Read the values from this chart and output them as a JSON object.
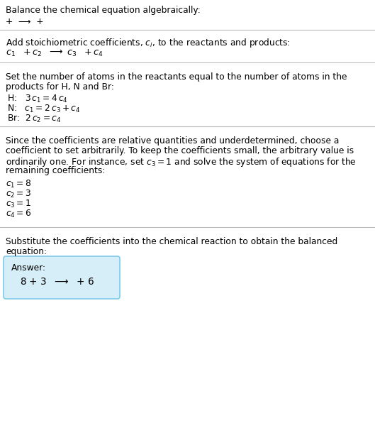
{
  "title": "Balance the chemical equation algebraically:",
  "line1": "+  ⟶  +",
  "section1_intro": "Add stoichiometric coefficients, $c_i$, to the reactants and products:",
  "section1_eq_parts": [
    "$c_1$",
    " +",
    "$c_2$",
    "  ⟶ ",
    " $c_3$",
    " +",
    "$c_4$"
  ],
  "section2_title1": "Set the number of atoms in the reactants equal to the number of atoms in the",
  "section2_title2": "products for H, N and Br:",
  "section2_H": "H:   $3\\,c_1 = 4\\,c_4$",
  "section2_N": "N:   $c_1 = 2\\,c_3 + c_4$",
  "section2_Br": "Br:  $2\\,c_2 = c_4$",
  "section3_line1": "Since the coefficients are relative quantities and underdetermined, choose a",
  "section3_line2": "coefficient to set arbitrarily. To keep the coefficients small, the arbitrary value is",
  "section3_line3": "ordinarily one. For instance, set $c_3 = 1$ and solve the system of equations for the",
  "section3_line4": "remaining coefficients:",
  "coeff_lines": [
    "$c_1 = 8$",
    "$c_2 = 3$",
    "$c_3 = 1$",
    "$c_4 = 6$"
  ],
  "section4_line1": "Substitute the coefficients into the chemical reaction to obtain the balanced",
  "section4_line2": "equation:",
  "answer_label": "Answer:",
  "answer_eq": "$8$ $+$ $3$  $\\longrightarrow$  $+$ $6$",
  "bg_color": "#ffffff",
  "text_color": "#000000",
  "answer_box_bg": "#d6eef8",
  "answer_box_border": "#7ecaea",
  "divider_color": "#bbbbbb",
  "serif_font": "DejaVu Serif",
  "sans_font": "DejaVu Sans"
}
